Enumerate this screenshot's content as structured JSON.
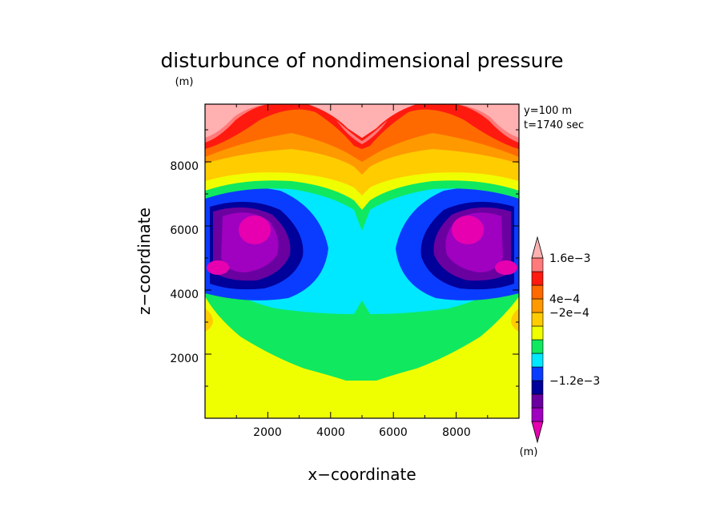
{
  "chart_data": {
    "type": "heatmap",
    "title": "disturbunce of nondimensional pressure",
    "ylabel": "z−coordinate",
    "xlabel": "x−coordinate",
    "y_unit": "(m)",
    "colorbar_unit": "(m)",
    "annotations": [
      "y=100 m",
      "t=1740 sec"
    ],
    "xlim": [
      0,
      10000
    ],
    "ylim": [
      0,
      9800
    ],
    "x_ticks": [
      "2000",
      "4000",
      "6000",
      "8000"
    ],
    "y_ticks": [
      "2000",
      "4000",
      "6000",
      "8000"
    ],
    "colorbar": {
      "colors": [
        "#e600b0",
        "#a000c0",
        "#6a00a0",
        "#00009a",
        "#0a3cff",
        "#00e8ff",
        "#10e860",
        "#f0ff00",
        "#ffcc00",
        "#ff9900",
        "#ff6a00",
        "#ff1a10",
        "#ff7a7a",
        "#ffb0b0"
      ],
      "labels": [
        {
          "text": "−1.2e−3",
          "pos": 3
        },
        {
          "text": "−2e−4",
          "pos": 8
        },
        {
          "text": "4e−4",
          "pos": 9
        },
        {
          "text": "1.6e−3",
          "pos": 12
        }
      ]
    },
    "field": {
      "description_levels_from_top": [
        "#ffb0b0",
        "#ff7a7a",
        "#ff1a10",
        "#ff6a00",
        "#ff9900",
        "#ffcc00",
        "#f0ff00",
        "#10e860",
        "#00e8ff",
        "#0a3cff",
        "#00009a",
        "#6a00a0",
        "#a000c0",
        "#e600b0"
      ]
    }
  }
}
